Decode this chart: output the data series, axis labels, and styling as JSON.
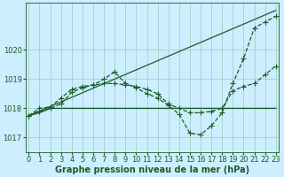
{
  "bg_color": "#cceeff",
  "grid_color": "#99ccbb",
  "line_color": "#1a5c28",
  "xlabel": "Graphe pression niveau de la mer (hPa)",
  "xlabel_fontsize": 7,
  "tick_fontsize": 6,
  "ytick_labels": [
    1017,
    1018,
    1019,
    1020
  ],
  "ylim": [
    1016.5,
    1021.6
  ],
  "xlim": [
    -0.3,
    23.3
  ],
  "xticks": [
    0,
    1,
    2,
    3,
    4,
    5,
    6,
    7,
    8,
    9,
    10,
    11,
    12,
    13,
    14,
    15,
    16,
    17,
    18,
    19,
    20,
    21,
    22,
    23
  ],
  "series": [
    {
      "x": [
        0,
        1,
        2,
        3,
        4,
        5,
        6,
        7,
        8,
        9,
        10,
        11,
        12,
        13,
        14,
        15,
        16,
        17,
        18,
        19,
        20,
        21,
        22,
        23
      ],
      "y": [
        1017.75,
        1017.85,
        1018.0,
        1018.0,
        1018.0,
        1018.0,
        1018.0,
        1018.0,
        1018.0,
        1018.0,
        1018.0,
        1018.0,
        1018.0,
        1018.0,
        1018.0,
        1018.0,
        1018.0,
        1018.0,
        1018.0,
        1018.0,
        1018.0,
        1018.0,
        1018.0,
        1018.0
      ],
      "marker": null,
      "linestyle": "-",
      "linewidth": 1.0
    },
    {
      "x": [
        0,
        1,
        2,
        3,
        4,
        5,
        6,
        7,
        8,
        9,
        10,
        11,
        12,
        13,
        14,
        15,
        16,
        17,
        18,
        19,
        20,
        21,
        22,
        23
      ],
      "y": [
        1017.75,
        1017.9,
        1018.0,
        1018.15,
        1018.55,
        1018.7,
        1018.8,
        1019.0,
        1019.25,
        1018.85,
        1018.7,
        1018.5,
        1018.35,
        1018.1,
        1017.8,
        1017.15,
        1017.1,
        1017.4,
        1017.85,
        1018.85,
        1019.7,
        1020.75,
        1020.95,
        1021.15
      ],
      "marker": "+",
      "markersize": 4.5,
      "linestyle": "--",
      "linewidth": 0.9
    },
    {
      "x": [
        0,
        1,
        2,
        3,
        4,
        5,
        6,
        7,
        8,
        9,
        10,
        11,
        12,
        13,
        14,
        15,
        16,
        17,
        18,
        19,
        20,
        21,
        22,
        23
      ],
      "y": [
        1017.75,
        1018.0,
        1018.05,
        1018.35,
        1018.65,
        1018.75,
        1018.8,
        1018.85,
        1018.85,
        1018.8,
        1018.75,
        1018.65,
        1018.5,
        1018.15,
        1018.0,
        1017.85,
        1017.85,
        1017.9,
        1018.0,
        1018.6,
        1018.75,
        1018.85,
        1019.15,
        1019.45
      ],
      "marker": "+",
      "markersize": 4.5,
      "linestyle": "--",
      "linewidth": 0.9
    },
    {
      "x": [
        0,
        23
      ],
      "y": [
        1017.75,
        1021.35
      ],
      "marker": null,
      "linestyle": "-",
      "linewidth": 0.9
    }
  ]
}
